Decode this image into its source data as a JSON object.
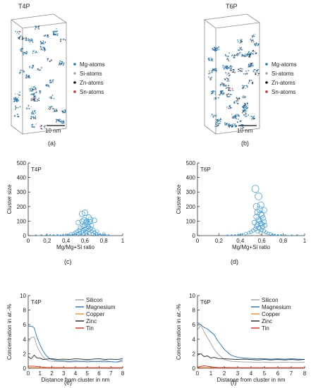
{
  "panels": {
    "a": {
      "label": "(a)",
      "title": "T4P",
      "scale_label": "10 nm"
    },
    "b": {
      "label": "(b)",
      "title": "T6P",
      "scale_label": "10 nm"
    },
    "c": {
      "label": "(c)"
    },
    "d": {
      "label": "(d)"
    },
    "e": {
      "label": "(e)"
    },
    "f": {
      "label": "(f)"
    }
  },
  "atom_legend": {
    "entries": [
      {
        "name": "Mg-atoms",
        "color": "#1f77b4"
      },
      {
        "name": "Si-atoms",
        "color": "#a9a9a9"
      },
      {
        "name": "Zn-atoms",
        "color": "#111111"
      },
      {
        "name": "Sn-atoms",
        "color": "#e0211d"
      }
    ]
  },
  "chart_data": [
    {
      "panel": "c",
      "type": "scatter",
      "title": "T4P",
      "xlabel": "Mg/Mg+Si ratio",
      "ylabel": "Cluster size",
      "xlim": [
        0,
        1
      ],
      "ylim": [
        0,
        500
      ],
      "xticks": [
        0,
        0.2,
        0.4,
        0.6,
        0.8,
        1
      ],
      "xtick_labels": [
        "0",
        "0,2",
        "0,4",
        "0,6",
        "0,8",
        "1"
      ],
      "yticks": [
        0,
        100,
        200,
        300,
        400,
        500
      ],
      "ytick_labels": [
        "0",
        "100",
        "200",
        "300",
        "400",
        "500"
      ],
      "color": "#3a9ad9",
      "points": [
        [
          0.08,
          2
        ],
        [
          0.14,
          3
        ],
        [
          0.19,
          2
        ],
        [
          0.23,
          4
        ],
        [
          0.27,
          3
        ],
        [
          0.31,
          5
        ],
        [
          0.34,
          2
        ],
        [
          0.37,
          6
        ],
        [
          0.4,
          4
        ],
        [
          0.42,
          8
        ],
        [
          0.44,
          5
        ],
        [
          0.45,
          12
        ],
        [
          0.47,
          7
        ],
        [
          0.48,
          15
        ],
        [
          0.49,
          10
        ],
        [
          0.5,
          22
        ],
        [
          0.51,
          9
        ],
        [
          0.52,
          30
        ],
        [
          0.53,
          14
        ],
        [
          0.54,
          40
        ],
        [
          0.55,
          18
        ],
        [
          0.55,
          55
        ],
        [
          0.56,
          8
        ],
        [
          0.57,
          25
        ],
        [
          0.58,
          65
        ],
        [
          0.58,
          35
        ],
        [
          0.59,
          12
        ],
        [
          0.6,
          70
        ],
        [
          0.6,
          45
        ],
        [
          0.61,
          20
        ],
        [
          0.61,
          90
        ],
        [
          0.62,
          50
        ],
        [
          0.62,
          28
        ],
        [
          0.63,
          80
        ],
        [
          0.63,
          10
        ],
        [
          0.64,
          60
        ],
        [
          0.64,
          38
        ],
        [
          0.65,
          95
        ],
        [
          0.65,
          18
        ],
        [
          0.66,
          48
        ],
        [
          0.67,
          30
        ],
        [
          0.67,
          70
        ],
        [
          0.68,
          12
        ],
        [
          0.69,
          40
        ],
        [
          0.7,
          22
        ],
        [
          0.71,
          8
        ],
        [
          0.72,
          15
        ],
        [
          0.73,
          28
        ],
        [
          0.74,
          6
        ],
        [
          0.76,
          10
        ],
        [
          0.78,
          5
        ],
        [
          0.8,
          12
        ],
        [
          0.82,
          4
        ],
        [
          0.85,
          3
        ],
        [
          0.57,
          150
        ],
        [
          0.6,
          158
        ],
        [
          0.59,
          108
        ],
        [
          0.62,
          100
        ],
        [
          0.7,
          105
        ],
        [
          0.66,
          110
        ],
        [
          0.53,
          90
        ],
        [
          0.57,
          98
        ],
        [
          0.64,
          125
        ]
      ]
    },
    {
      "panel": "d",
      "type": "scatter",
      "title": "T6P",
      "xlabel": "Mg/Mg+Si ratio",
      "ylabel": "Cluster size",
      "xlim": [
        0,
        1
      ],
      "ylim": [
        0,
        500
      ],
      "xticks": [
        0,
        0.2,
        0.4,
        0.6,
        0.8,
        1
      ],
      "xtick_labels": [
        "0",
        "0,2",
        "0,4",
        "0,6",
        "0,8",
        "1"
      ],
      "yticks": [
        0,
        100,
        200,
        300,
        400,
        500
      ],
      "ytick_labels": [
        "0",
        "100",
        "200",
        "300",
        "400",
        "500"
      ],
      "color": "#3a9ad9",
      "points": [
        [
          0.54,
          322
        ],
        [
          0.57,
          270
        ],
        [
          0.59,
          210
        ],
        [
          0.58,
          180
        ],
        [
          0.56,
          160
        ],
        [
          0.6,
          140
        ],
        [
          0.55,
          130
        ],
        [
          0.61,
          120
        ],
        [
          0.57,
          110
        ],
        [
          0.58,
          100
        ],
        [
          0.62,
          95
        ],
        [
          0.53,
          90
        ],
        [
          0.59,
          85
        ],
        [
          0.6,
          80
        ],
        [
          0.56,
          75
        ],
        [
          0.63,
          70
        ],
        [
          0.55,
          65
        ],
        [
          0.61,
          60
        ],
        [
          0.57,
          55
        ],
        [
          0.58,
          50
        ],
        [
          0.54,
          45
        ],
        [
          0.6,
          40
        ],
        [
          0.52,
          35
        ],
        [
          0.62,
          32
        ],
        [
          0.56,
          28
        ],
        [
          0.5,
          25
        ],
        [
          0.64,
          22
        ],
        [
          0.48,
          20
        ],
        [
          0.59,
          18
        ],
        [
          0.66,
          15
        ],
        [
          0.45,
          14
        ],
        [
          0.68,
          12
        ],
        [
          0.42,
          10
        ],
        [
          0.7,
          9
        ],
        [
          0.4,
          8
        ],
        [
          0.72,
          7
        ],
        [
          0.38,
          6
        ],
        [
          0.75,
          5
        ],
        [
          0.35,
          4
        ],
        [
          0.78,
          4
        ],
        [
          0.32,
          3
        ],
        [
          0.82,
          3
        ],
        [
          0.28,
          2
        ],
        [
          0.88,
          2
        ],
        [
          0.93,
          3
        ],
        [
          0.59,
          150
        ],
        [
          0.55,
          200
        ],
        [
          0.62,
          175
        ]
      ]
    },
    {
      "panel": "e",
      "type": "line",
      "title": "T4P",
      "xlabel": "Distance from cluster in nm",
      "ylabel": "Concentration in at.-%",
      "xlim": [
        0,
        8
      ],
      "ylim": [
        0,
        10
      ],
      "xticks": [
        0,
        1,
        2,
        3,
        4,
        5,
        6,
        7,
        8
      ],
      "yticks": [
        0,
        2,
        4,
        6,
        8,
        10
      ],
      "series": [
        {
          "name": "Silicon",
          "color": "#a0a0a0",
          "x": [
            0,
            0.25,
            0.5,
            0.75,
            1,
            1.25,
            1.5,
            1.75,
            2,
            2.5,
            3,
            3.5,
            4,
            4.5,
            5,
            5.5,
            6,
            6.5,
            7,
            7.5,
            8
          ],
          "y": [
            3.6,
            4.2,
            4.3,
            3.0,
            2.2,
            1.6,
            1.2,
            1.0,
            0.95,
            0.9,
            0.9,
            0.85,
            0.9,
            0.9,
            0.85,
            0.9,
            0.9,
            0.85,
            0.9,
            0.85,
            0.9
          ]
        },
        {
          "name": "Magnesium",
          "color": "#1f6fc4",
          "x": [
            0,
            0.25,
            0.5,
            0.75,
            1,
            1.25,
            1.5,
            1.75,
            2,
            2.5,
            3,
            3.5,
            4,
            4.5,
            5,
            5.5,
            6,
            6.5,
            7,
            7.5,
            8
          ],
          "y": [
            5.8,
            5.8,
            5.6,
            4.2,
            3.2,
            2.4,
            1.8,
            1.4,
            1.2,
            1.05,
            1.0,
            0.95,
            1.0,
            0.95,
            1.0,
            0.95,
            0.95,
            1.0,
            0.9,
            0.85,
            1.1
          ]
        },
        {
          "name": "Copper",
          "color": "#f28c28",
          "x": [
            0,
            0.5,
            1,
            1.5,
            2,
            3,
            4,
            5,
            6,
            7,
            8
          ],
          "y": [
            0.08,
            0.1,
            0.07,
            0.06,
            0.05,
            0.05,
            0.05,
            0.05,
            0.05,
            0.05,
            0.05
          ]
        },
        {
          "name": "Zinc",
          "color": "#222222",
          "x": [
            0,
            0.25,
            0.5,
            0.75,
            1,
            1.25,
            1.5,
            2,
            2.5,
            3,
            3.5,
            4,
            4.5,
            5,
            5.5,
            6,
            6.5,
            7,
            7.5,
            8
          ],
          "y": [
            1.6,
            1.3,
            1.8,
            1.4,
            1.4,
            1.2,
            1.25,
            1.3,
            1.2,
            1.25,
            1.2,
            1.3,
            1.25,
            1.2,
            1.25,
            1.3,
            1.2,
            1.25,
            1.2,
            1.3
          ]
        },
        {
          "name": "Tin",
          "color": "#e0211d",
          "x": [
            0,
            0.5,
            1,
            1.5,
            2,
            3,
            4,
            5,
            6,
            7,
            8
          ],
          "y": [
            0.3,
            0.28,
            0.2,
            0.12,
            0.1,
            0.08,
            0.08,
            0.08,
            0.08,
            0.08,
            0.08
          ]
        }
      ]
    },
    {
      "panel": "f",
      "type": "line",
      "title": "T6P",
      "xlabel": "Distance from cluster in nm",
      "ylabel": "Concentration in at.-%",
      "xlim": [
        0,
        8
      ],
      "ylim": [
        0,
        10
      ],
      "xticks": [
        0,
        1,
        2,
        3,
        4,
        5,
        6,
        7,
        8
      ],
      "yticks": [
        0,
        2,
        4,
        6,
        8,
        10
      ],
      "series": [
        {
          "name": "Silicon",
          "color": "#a0a0a0",
          "x": [
            0,
            0.25,
            0.5,
            0.75,
            1,
            1.25,
            1.5,
            1.75,
            2,
            2.5,
            3,
            3.5,
            4,
            4.5,
            5,
            5.5,
            6,
            6.5,
            7,
            7.5,
            8
          ],
          "y": [
            5.2,
            6.0,
            5.0,
            4.2,
            3.4,
            2.6,
            2.0,
            1.6,
            1.2,
            0.95,
            0.9,
            0.85,
            0.85,
            0.8,
            0.85,
            0.8,
            0.8,
            0.85,
            0.8,
            0.8,
            0.85
          ]
        },
        {
          "name": "Magnesium",
          "color": "#1f6fc4",
          "x": [
            0,
            0.25,
            0.5,
            0.75,
            1,
            1.25,
            1.5,
            1.75,
            2,
            2.5,
            3,
            3.5,
            4,
            4.5,
            5,
            5.5,
            6,
            6.5,
            7,
            7.5,
            8
          ],
          "y": [
            6.3,
            6.0,
            5.6,
            5.4,
            5.0,
            4.6,
            3.8,
            3.2,
            2.6,
            1.8,
            1.5,
            1.4,
            1.35,
            1.3,
            1.3,
            1.25,
            1.3,
            1.25,
            1.3,
            1.25,
            1.2
          ]
        },
        {
          "name": "Copper",
          "color": "#f28c28",
          "x": [
            0,
            0.5,
            1,
            1.5,
            2,
            3,
            4,
            5,
            6,
            7,
            8
          ],
          "y": [
            0.1,
            0.12,
            0.1,
            0.08,
            0.07,
            0.06,
            0.06,
            0.06,
            0.06,
            0.06,
            0.06
          ]
        },
        {
          "name": "Zinc",
          "color": "#222222",
          "x": [
            0,
            0.25,
            0.5,
            0.75,
            1,
            1.25,
            1.5,
            2,
            2.5,
            3,
            3.5,
            4,
            4.5,
            5,
            5.5,
            6,
            6.5,
            7,
            7.5,
            8
          ],
          "y": [
            1.8,
            2.0,
            1.6,
            1.7,
            1.4,
            1.5,
            1.35,
            1.3,
            1.25,
            1.2,
            1.25,
            1.2,
            1.15,
            1.2,
            1.15,
            1.2,
            1.15,
            1.2,
            1.15,
            1.2
          ]
        },
        {
          "name": "Tin",
          "color": "#e0211d",
          "x": [
            0,
            0.5,
            1,
            1.5,
            2,
            3,
            4,
            5,
            6,
            7,
            8
          ],
          "y": [
            0.15,
            0.35,
            0.2,
            0.12,
            0.1,
            0.08,
            0.08,
            0.08,
            0.08,
            0.08,
            0.08
          ]
        }
      ]
    }
  ]
}
